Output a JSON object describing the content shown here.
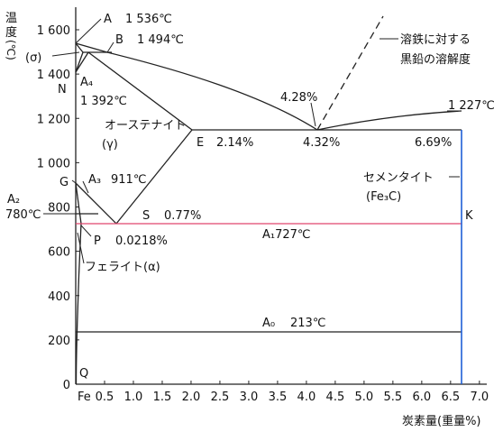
{
  "y_axis": {
    "title_chars": [
      "温",
      "度"
    ],
    "unit": "(℃)",
    "ticks": [
      {
        "value": 0,
        "label": "0"
      },
      {
        "value": 200,
        "label": "200"
      },
      {
        "value": 400,
        "label": "400"
      },
      {
        "value": 600,
        "label": "600"
      },
      {
        "value": 800,
        "label": "800"
      },
      {
        "value": 1000,
        "label": "1 000"
      },
      {
        "value": 1200,
        "label": "1 200"
      },
      {
        "value": 1400,
        "label": "1 400"
      },
      {
        "value": 1600,
        "label": "1 600"
      }
    ],
    "range": [
      0,
      1700
    ]
  },
  "x_axis": {
    "title": "炭素量(重量%)",
    "ticks": [
      {
        "value": 0,
        "label": "Fe"
      },
      {
        "value": 0.5,
        "label": "0.5"
      },
      {
        "value": 1.0,
        "label": "1.0"
      },
      {
        "value": 1.5,
        "label": "1.5"
      },
      {
        "value": 2.0,
        "label": "2.0"
      },
      {
        "value": 2.5,
        "label": "2.5"
      },
      {
        "value": 3.0,
        "label": "3.0"
      },
      {
        "value": 3.5,
        "label": "3.5"
      },
      {
        "value": 4.0,
        "label": "4.0"
      },
      {
        "value": 4.5,
        "label": "4.5"
      },
      {
        "value": 5.0,
        "label": "5.0"
      },
      {
        "value": 5.5,
        "label": "5.5"
      },
      {
        "value": 6.0,
        "label": "6.0"
      },
      {
        "value": 6.5,
        "label": "6.5"
      },
      {
        "value": 7.0,
        "label": "7.0"
      }
    ],
    "range": [
      0,
      7.3
    ]
  },
  "labels": {
    "A": "A",
    "A_temp": "1 536℃",
    "B": "B",
    "B_temp": "1 494℃",
    "sigma": "(σ)",
    "N": "N",
    "A4": "A₄",
    "A4_temp": "1 392℃",
    "austenite": "オーステナイト",
    "gamma": "(γ)",
    "E": "E",
    "E_pct": "2.14%",
    "eut_pct_left": "4.28%",
    "eut_pct": "4.32%",
    "right_pct": "6.69%",
    "top_right_temp": "1 227℃",
    "graphite_line1": "溶鉄に対する",
    "graphite_line2": "黒鉛の溶解度",
    "cementite": "セメンタイト",
    "cementite_formula": "(Fe₃C)",
    "G": "G",
    "A3": "A₃",
    "A3_temp": "911℃",
    "A2": "A₂",
    "A2_temp": "780℃",
    "S": "S",
    "S_pct": "0.77%",
    "P": "P",
    "P_pct": "0.0218%",
    "A1": "A₁727℃",
    "K": "K",
    "ferrite": "フェライト(α)",
    "A0": "A₀",
    "A0_temp": "213℃",
    "Q": "Q"
  },
  "diagram_data": {
    "points": {
      "A": [
        0,
        1536
      ],
      "B": [
        0.53,
        1494
      ],
      "N": [
        0,
        1392
      ],
      "E": [
        2.14,
        1148
      ],
      "C": [
        4.32,
        1148
      ],
      "F": [
        6.69,
        1148
      ],
      "G": [
        0,
        911
      ],
      "S": [
        0.77,
        727
      ],
      "P": [
        0.0218,
        727
      ],
      "K": [
        6.69,
        727
      ]
    },
    "colors": {
      "line": "#222222",
      "a1_line": "#e0466e",
      "cementite_line": "#1f5fd6"
    }
  }
}
